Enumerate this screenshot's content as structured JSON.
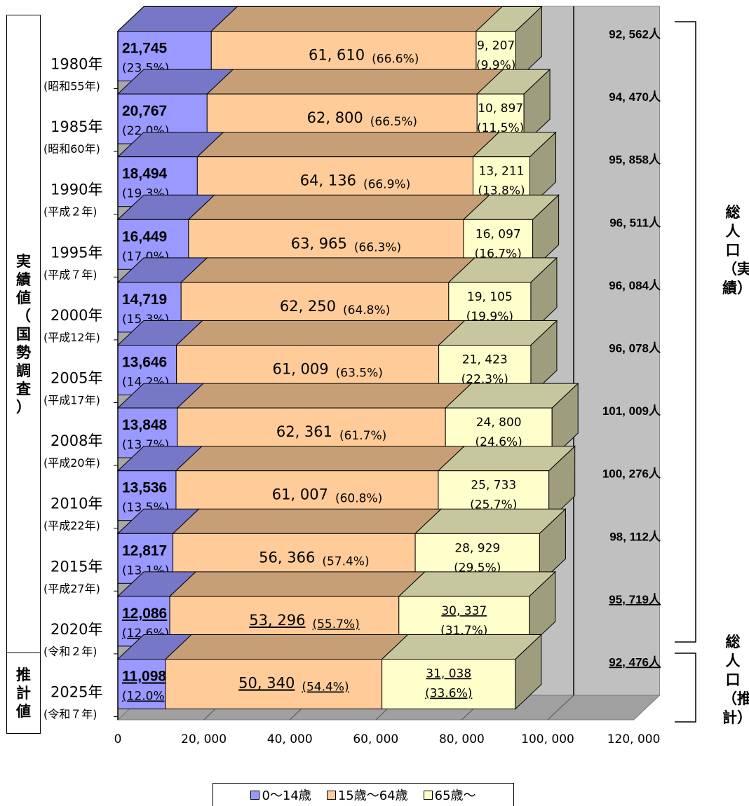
{
  "chart_data": {
    "type": "bar",
    "orientation": "horizontal",
    "stacked": true,
    "categories": [
      {
        "year": "1980年",
        "era": "(昭和55年)"
      },
      {
        "year": "1985年",
        "era": "(昭和60年)"
      },
      {
        "year": "1990年",
        "era": "(平成２年)"
      },
      {
        "year": "1995年",
        "era": "(平成７年)"
      },
      {
        "year": "2000年",
        "era": "(平成12年)"
      },
      {
        "year": "2005年",
        "era": "(平成17年)"
      },
      {
        "year": "2008年",
        "era": "(平成20年)"
      },
      {
        "year": "2010年",
        "era": "(平成22年)"
      },
      {
        "year": "2015年",
        "era": "(平成27年)"
      },
      {
        "year": "2020年",
        "era": "(令和２年)"
      },
      {
        "year": "2025年",
        "era": "(令和７年)"
      }
    ],
    "series": [
      {
        "name": "0～14歳",
        "color": "#9999ff",
        "values": [
          21745,
          20767,
          18494,
          16449,
          14719,
          13646,
          13848,
          13536,
          12817,
          12086,
          11098
        ],
        "labels": [
          "21,745",
          "20,767",
          "18,494",
          "16,449",
          "14,719",
          "13,646",
          "13,848",
          "13,536",
          "12,817",
          "12,086",
          "11,098"
        ],
        "pct": [
          "(23.5%)",
          "(22.0%)",
          "(19.3%)",
          "(17.0%)",
          "(15.3%)",
          "(14.2%)",
          "(13.7%)",
          "(13.5%)",
          "(13.1%)",
          "(12.6%)",
          "(12.0%)"
        ]
      },
      {
        "name": "15歳～64歳",
        "color": "#ffcc99",
        "values": [
          61610,
          62800,
          64136,
          63965,
          62250,
          61009,
          62361,
          61007,
          56366,
          53296,
          50340
        ],
        "labels": [
          "61, 610",
          "62, 800",
          "64, 136",
          "63, 965",
          "62, 250",
          "61, 009",
          "62, 361",
          "61, 007",
          "56, 366",
          "53, 296",
          "50, 340"
        ],
        "pct": [
          "(66.6%)",
          "(66.5%)",
          "(66.9%)",
          "(66.3%)",
          "(64.8%)",
          "(63.5%)",
          "(61.7%)",
          "(60.8%)",
          "(57.4%)",
          "(55.7%)",
          "(54.4%)"
        ]
      },
      {
        "name": "65歳～",
        "color": "#ffffcc",
        "values": [
          9207,
          10897,
          13211,
          16097,
          19105,
          21423,
          24800,
          25733,
          28929,
          30337,
          31038
        ],
        "labels": [
          "9, 207",
          "10, 897",
          "13, 211",
          "16, 097",
          "19, 105",
          "21, 423",
          "24, 800",
          "25, 733",
          "28, 929",
          "30, 337",
          "31, 038"
        ],
        "pct": [
          "(9.9%)",
          "(11.5%)",
          "(13.8%)",
          "(16.7%)",
          "(19.9%)",
          "(22.3%)",
          "(24.6%)",
          "(25.7%)",
          "(29.5%)",
          "(31.7%)",
          "(33.6%)"
        ]
      }
    ],
    "totals": [
      "92, 562人",
      "94, 470人",
      "95, 858人",
      "96, 511人",
      "96, 084人",
      "96, 078人",
      "101, 009人",
      "100, 276人",
      "98, 112人",
      "95, 719人",
      "92, 476人"
    ],
    "underlined_rows": [
      9,
      10
    ],
    "x_ticks": [
      "0",
      "20, 000",
      "40, 000",
      "60, 000",
      "80, 000",
      "100, 000",
      "120, 000"
    ],
    "xlim": [
      0,
      120000
    ],
    "grid": true,
    "legend_position": "bottom"
  },
  "left_labels": {
    "actual": "実績値（国勢調査）",
    "estimate": "推計値"
  },
  "right_labels": {
    "actual": "総人口（実績）",
    "estimate": "総人口（推計）"
  },
  "legend": {
    "items": [
      "0～14歳",
      "15歳～64歳",
      "65歳～"
    ]
  }
}
